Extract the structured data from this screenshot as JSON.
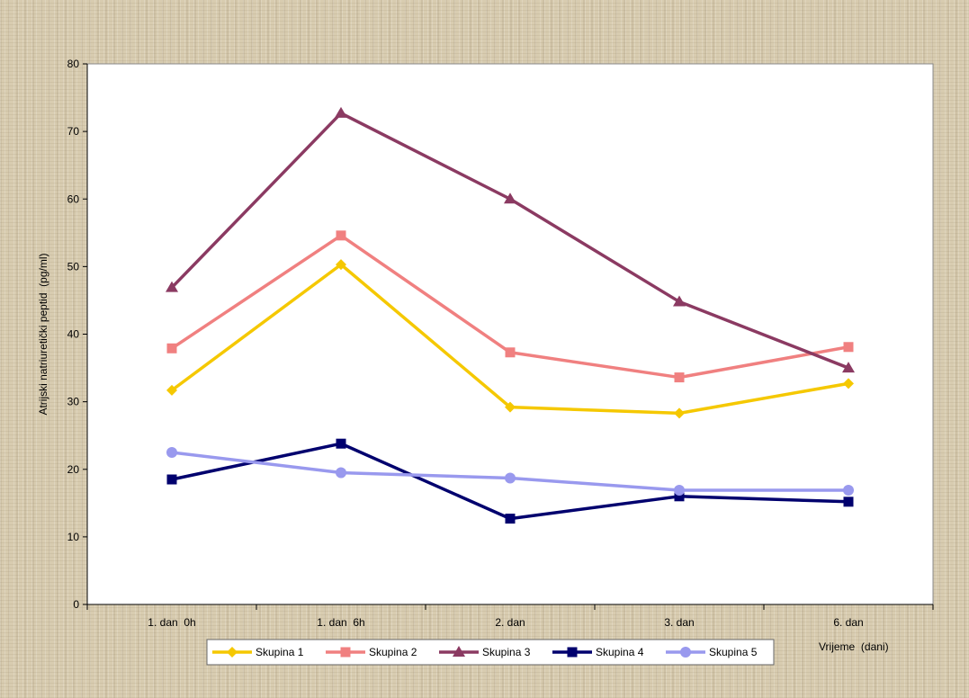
{
  "chart_data": {
    "type": "line",
    "categories": [
      "1. dan  0h",
      "1. dan  6h",
      "2. dan",
      "3. dan",
      "6. dan"
    ],
    "series": [
      {
        "name": "Skupina 1",
        "values": [
          31.7,
          50.3,
          29.2,
          28.3,
          32.7
        ],
        "color": "#f5c800",
        "marker": "diamond"
      },
      {
        "name": "Skupina 2",
        "values": [
          37.9,
          54.6,
          37.3,
          33.6,
          38.1
        ],
        "color": "#f08080",
        "marker": "square"
      },
      {
        "name": "Skupina 3",
        "values": [
          46.9,
          72.7,
          60.0,
          44.8,
          35.0
        ],
        "color": "#8b3a62",
        "marker": "triangle"
      },
      {
        "name": "Skupina 4",
        "values": [
          18.5,
          23.8,
          12.7,
          16.0,
          15.2
        ],
        "color": "#00006e",
        "marker": "square"
      },
      {
        "name": "Skupina 5",
        "values": [
          22.5,
          19.5,
          18.7,
          16.9,
          16.9
        ],
        "color": "#9999ee",
        "marker": "circle"
      }
    ],
    "xlabel": "Vrijeme  (dani)",
    "ylabel": "Atrijski natriuretički peptid  (pg/ml)",
    "ylim": [
      0,
      80
    ],
    "yticks": [
      0,
      10,
      20,
      30,
      40,
      50,
      60,
      70,
      80
    ],
    "grid": false,
    "legend_position": "bottom"
  }
}
